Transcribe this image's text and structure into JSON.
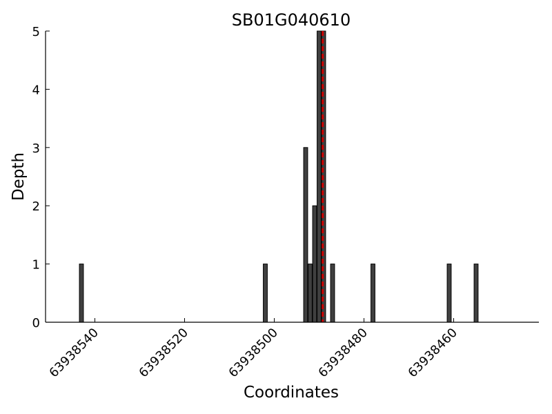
{
  "chart_data": {
    "type": "bar",
    "title": "SB01G040610",
    "xlabel": "Coordinates",
    "ylabel": "Depth",
    "x_reversed": true,
    "xlim": [
      63938551,
      63938441
    ],
    "ylim": [
      0,
      5
    ],
    "xticks": [
      "63938540",
      "63938520",
      "63938500",
      "63938480",
      "63938460"
    ],
    "yticks": [
      "0",
      "1",
      "2",
      "3",
      "4",
      "5"
    ],
    "bars": [
      {
        "x": 63938543,
        "depth": 1
      },
      {
        "x": 63938502,
        "depth": 1
      },
      {
        "x": 63938493,
        "depth": 3
      },
      {
        "x": 63938492,
        "depth": 1
      },
      {
        "x": 63938491,
        "depth": 2
      },
      {
        "x": 63938490,
        "depth": 5
      },
      {
        "x": 63938489,
        "depth": 5
      },
      {
        "x": 63938487,
        "depth": 1
      },
      {
        "x": 63938478,
        "depth": 1
      },
      {
        "x": 63938461,
        "depth": 1
      },
      {
        "x": 63938455,
        "depth": 1
      }
    ],
    "marker_line": {
      "x": 63938489.2,
      "color": "#cc0000",
      "style": "dashed"
    },
    "bar_color": "#404040",
    "grid": false,
    "legend": "none"
  }
}
